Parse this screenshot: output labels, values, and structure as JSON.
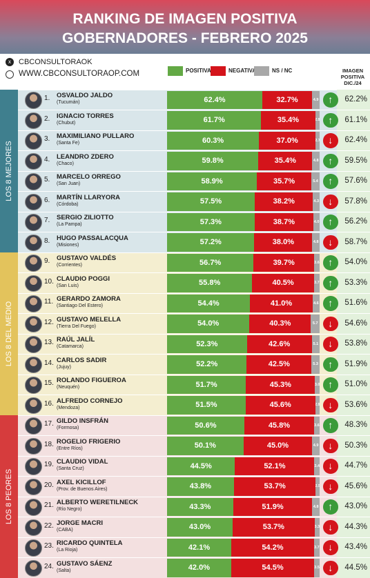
{
  "chart_data": {
    "type": "bar",
    "stacked": true,
    "orientation": "horizontal",
    "title": "RANKING DE IMAGEN POSITIVA",
    "subtitle": "GOBERNADORES - FEBRERO 2025",
    "source": "CBCONSULTORAOK",
    "website": "WWW.CBCONSULTORAOP.COM",
    "xlim": [
      0,
      100
    ],
    "ranks": [
      "1.",
      "2.",
      "3.",
      "4.",
      "5.",
      "6.",
      "7.",
      "8.",
      "9.",
      "10.",
      "11.",
      "12.",
      "13.",
      "14.",
      "15.",
      "16.",
      "17.",
      "18.",
      "19.",
      "20.",
      "21.",
      "22.",
      "23.",
      "24."
    ],
    "categories": [
      "OSVALDO JALDO",
      "IGNACIO TORRES",
      "MAXIMILIANO PULLARO",
      "LEANDRO ZDERO",
      "MARCELO ORREGO",
      "MARTÍN LLARYORA",
      "SERGIO ZILIOTTO",
      "HUGO PASSALACQUA",
      "GUSTAVO VALDÉS",
      "CLAUDIO POGGI",
      "GERARDO ZAMORA",
      "GUSTAVO MELELLA",
      "RAÚL JALÍL",
      "CARLOS SADIR",
      "ROLANDO FIGUEROA",
      "ALFREDO CORNEJO",
      "GILDO INSFRÁN",
      "ROGELIO FRIGERIO",
      "CLAUDIO VIDAL",
      "AXEL KICILLOF",
      "ALBERTO WERETILNECK",
      "JORGE MACRI",
      "RICARDO QUINTELA",
      "GUSTAVO SÁENZ"
    ],
    "provinces": [
      "(Tucumán)",
      "(Chubut)",
      "(Santa Fe)",
      "(Chaco)",
      "(San Juan)",
      "(Córdoba)",
      "(La Pampa)",
      "(Misiones)",
      "(Corrientes)",
      "(San Luis)",
      "(Santiago Del Estero)",
      "(Tierra Del Fuego)",
      "(Catamarca)",
      "(Jujuy)",
      "(Neuquén)",
      "(Mendoza)",
      "(Formosa)",
      "(Entre Ríos)",
      "(Santa Cruz)",
      "(Prov. de Buenos Aires)",
      "(Río Negro)",
      "(CABA)",
      "(La Rioja)",
      "(Salta)"
    ],
    "groups": [
      {
        "name": "LOS 8 MEJORES",
        "color": "#3f7f8e",
        "background": "#d9e6ea"
      },
      {
        "name": "LOS 8 DEL MEDIO",
        "color": "#e3c35c",
        "background": "#f4eed0"
      },
      {
        "name": "LOS 8 PEORES",
        "color": "#d63c3d",
        "background": "#f3e0e0"
      }
    ],
    "series": [
      {
        "name": "POSITIVA",
        "color": "#63a945",
        "values": [
          62.4,
          61.7,
          60.3,
          59.8,
          58.9,
          57.5,
          57.3,
          57.2,
          56.7,
          55.8,
          54.4,
          54.0,
          52.3,
          52.2,
          51.7,
          51.5,
          50.6,
          50.1,
          44.5,
          43.8,
          43.3,
          43.0,
          42.1,
          42.0
        ],
        "value_labels": [
          "62.4%",
          "61.7%",
          "60.3%",
          "59.8%",
          "58.9%",
          "57.5%",
          "57.3%",
          "57.2%",
          "56.7%",
          "55.8%",
          "54.4%",
          "54.0%",
          "52.3%",
          "52.2%",
          "51.7%",
          "51.5%",
          "50.6%",
          "50.1%",
          "44.5%",
          "43.8%",
          "43.3%",
          "43.0%",
          "42.1%",
          "42.0%"
        ]
      },
      {
        "name": "NEGATIVA",
        "color": "#d4141b",
        "values": [
          32.7,
          35.4,
          37.0,
          35.4,
          35.7,
          38.2,
          38.7,
          38.0,
          39.7,
          40.5,
          41.0,
          40.3,
          42.6,
          42.5,
          45.3,
          45.6,
          45.8,
          45.0,
          52.1,
          53.7,
          51.9,
          53.7,
          54.2,
          54.5
        ],
        "value_labels": [
          "32.7%",
          "35.4%",
          "37.0%",
          "35.4%",
          "35.7%",
          "38.2%",
          "38.7%",
          "38.0%",
          "39.7%",
          "40.5%",
          "41.0%",
          "40.3%",
          "42.6%",
          "42.5%",
          "45.3%",
          "45.6%",
          "45.8%",
          "45.0%",
          "52.1%",
          "53.7%",
          "51.9%",
          "53.7%",
          "54.2%",
          "54.5%"
        ]
      },
      {
        "name": "NS / NC",
        "color": "#a8a8a8",
        "values": [
          4.9,
          2.9,
          2.7,
          4.8,
          5.4,
          4.3,
          4.0,
          4.8,
          3.6,
          3.7,
          4.6,
          5.7,
          5.1,
          5.3,
          3.0,
          2.9,
          3.6,
          4.9,
          3.4,
          2.5,
          4.8,
          3.3,
          3.7,
          3.5
        ],
        "value_labels": [
          "4.9",
          "2.9",
          "2.7",
          "4.8",
          "5.4",
          "4.3",
          "4.0",
          "4.8",
          "3.6",
          "3.7",
          "4.6",
          "5.7",
          "5.1",
          "5.3",
          "3.0",
          "2.9",
          "3.6",
          "4.9",
          "3.4",
          "2.5",
          "4.8",
          "3.3",
          "3.7",
          "3.5"
        ]
      }
    ],
    "previous": {
      "name": "IMAGEN POSITIVA DIC./24",
      "values": [
        62.2,
        61.1,
        62.4,
        59.5,
        57.6,
        57.8,
        56.2,
        58.7,
        54.0,
        53.3,
        51.6,
        54.6,
        53.8,
        51.9,
        51.0,
        53.6,
        48.3,
        50.3,
        44.7,
        45.6,
        43.0,
        44.3,
        43.4,
        44.5
      ],
      "value_labels": [
        "62.2%",
        "61.1%",
        "62.4%",
        "59.5%",
        "57.6%",
        "57.8%",
        "56.2%",
        "58.7%",
        "54.0%",
        "53.3%",
        "51.6%",
        "54.6%",
        "53.8%",
        "51.9%",
        "51.0%",
        "53.6%",
        "48.3%",
        "50.3%",
        "44.7%",
        "45.6%",
        "43.0%",
        "44.3%",
        "43.4%",
        "44.5%"
      ]
    }
  }
}
